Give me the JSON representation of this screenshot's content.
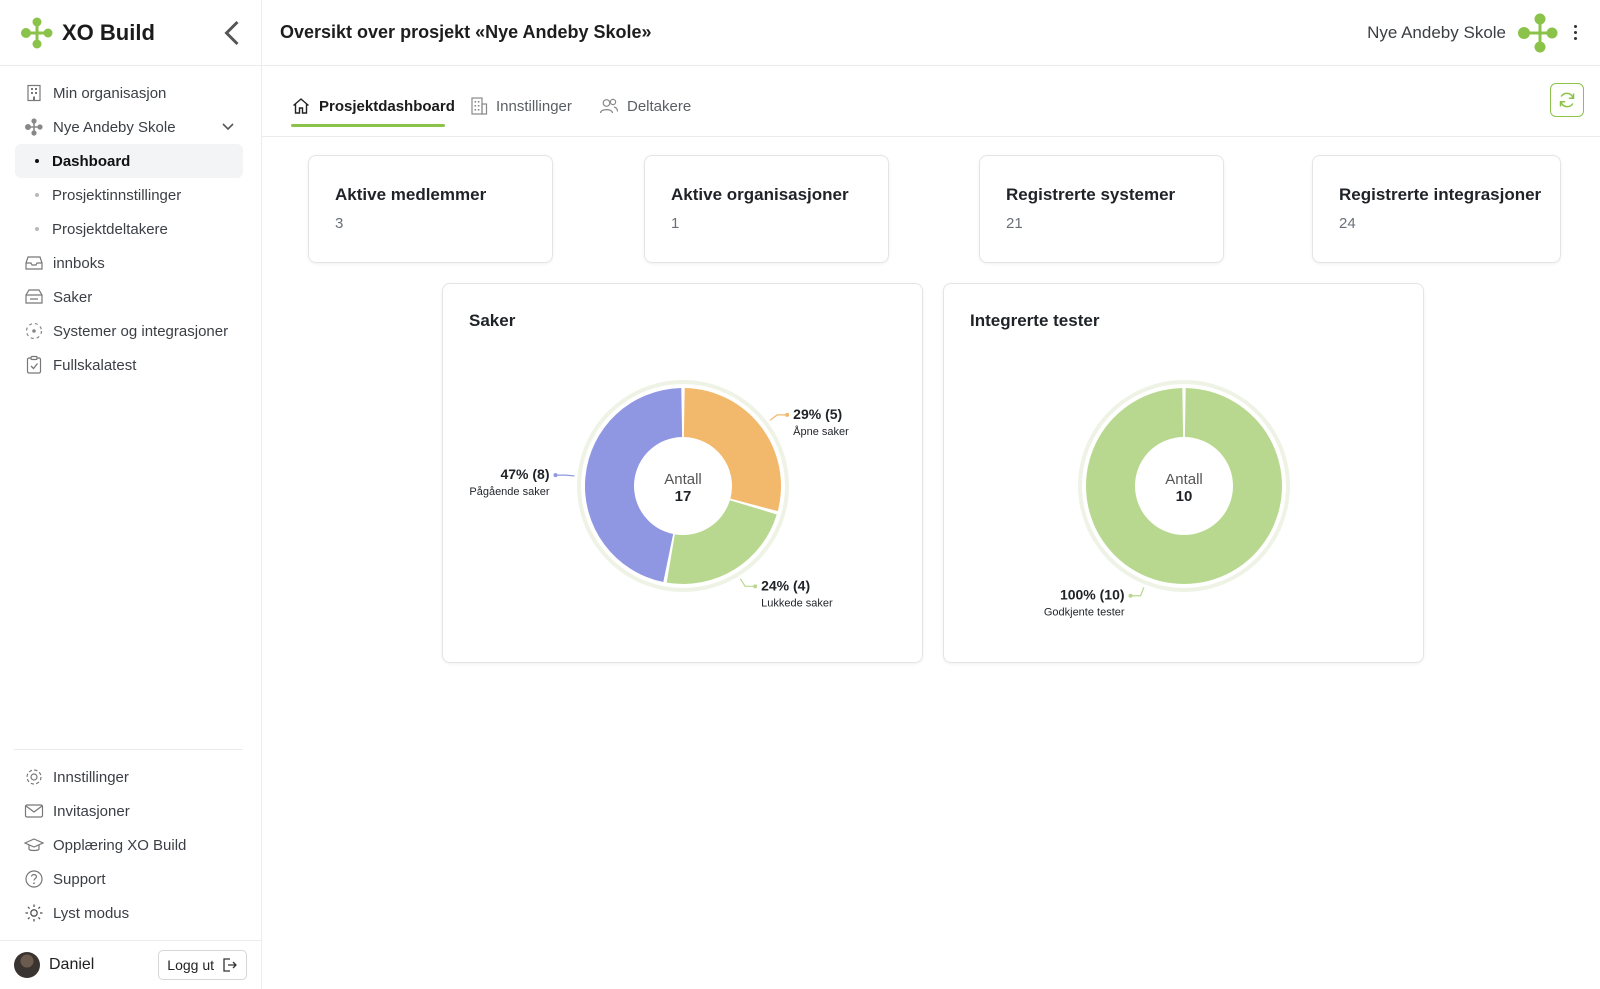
{
  "app": {
    "name": "XO Build",
    "colors": {
      "accent": "#8bc34a",
      "purple": "#8f96e2",
      "orange": "#f2b86b",
      "green": "#b9d88f"
    }
  },
  "header": {
    "title": "Oversikt over prosjekt «Nye Andeby Skole»",
    "project_name": "Nye Andeby Skole"
  },
  "sidebar": {
    "items": [
      {
        "label": "Min organisasjon",
        "icon": "building-icon"
      },
      {
        "label": "Nye Andeby Skole",
        "icon": "project-logo-icon"
      },
      {
        "label": "Dashboard",
        "active": true
      },
      {
        "label": "Prosjektinnstillinger"
      },
      {
        "label": "Prosjektdeltakere"
      },
      {
        "label": "innboks",
        "icon": "inbox-icon"
      },
      {
        "label": "Saker",
        "icon": "cases-icon"
      },
      {
        "label": "Systemer og integrasjoner",
        "icon": "systems-icon"
      },
      {
        "label": "Fullskalatest",
        "icon": "clipboard-check-icon"
      }
    ],
    "bottom_items": [
      {
        "label": "Innstillinger",
        "icon": "gear-icon"
      },
      {
        "label": "Invitasjoner",
        "icon": "mail-icon"
      },
      {
        "label": "Opplæring XO Build",
        "icon": "graduation-cap-icon"
      },
      {
        "label": "Support",
        "icon": "question-icon"
      },
      {
        "label": "Lyst modus",
        "icon": "sun-icon"
      }
    ],
    "user": {
      "name": "Daniel",
      "logout_label": "Logg ut"
    }
  },
  "tabs": [
    {
      "label": "Prosjektdashboard",
      "active": true
    },
    {
      "label": "Innstillinger"
    },
    {
      "label": "Deltakere"
    }
  ],
  "stats": [
    {
      "label": "Aktive medlemmer",
      "value": "3"
    },
    {
      "label": "Aktive organisasjoner",
      "value": "1"
    },
    {
      "label": "Registrerte systemer",
      "value": "21"
    },
    {
      "label": "Registrerte integrasjoner",
      "value": "24"
    }
  ],
  "chart_data": [
    {
      "type": "pie",
      "title": "Saker",
      "center_label": "Antall",
      "center_value": "17",
      "slices": [
        {
          "name": "Åpne saker",
          "value": 5,
          "percent": 29,
          "label": "29% (5)",
          "color": "#f2b86b"
        },
        {
          "name": "Lukkede saker",
          "value": 4,
          "percent": 24,
          "label": "24% (4)",
          "color": "#b9d88f"
        },
        {
          "name": "Pågående saker",
          "value": 8,
          "percent": 47,
          "label": "47% (8)",
          "color": "#8f96e2"
        }
      ]
    },
    {
      "type": "pie",
      "title": "Integrerte tester",
      "center_label": "Antall",
      "center_value": "10",
      "slices": [
        {
          "name": "Godkjente tester",
          "value": 10,
          "percent": 100,
          "label": "100% (10)",
          "color": "#b9d88f"
        }
      ]
    }
  ]
}
